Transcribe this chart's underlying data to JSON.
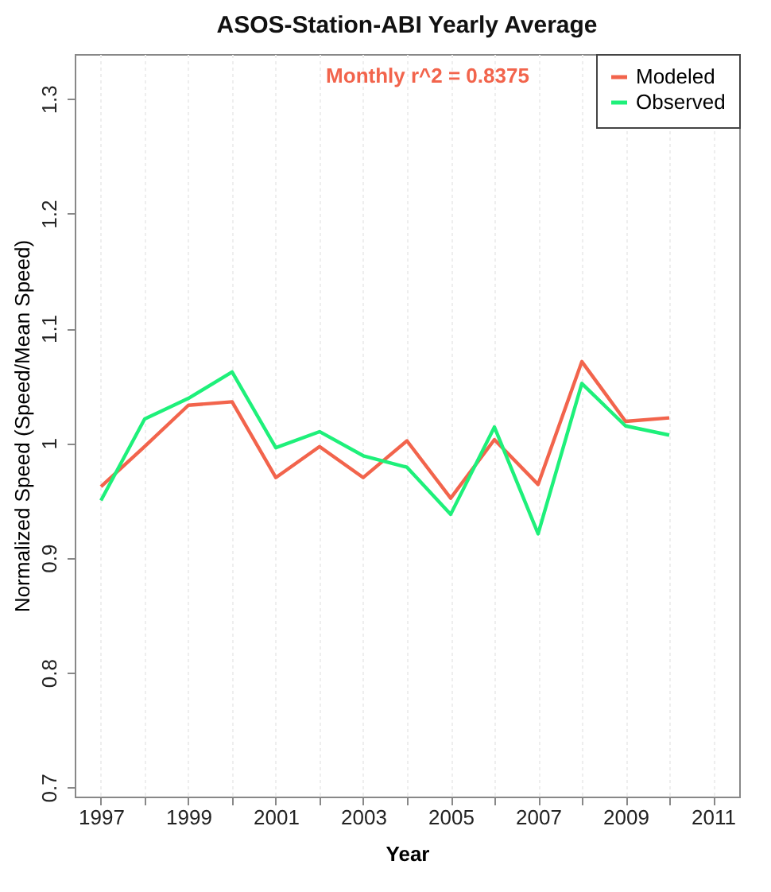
{
  "chart_data": {
    "type": "line",
    "title": "ASOS-Station-ABI Yearly Average",
    "xlabel": "Year",
    "ylabel": "Normalized Speed (Speed/Mean Speed)",
    "annotations": [
      "Monthly r^2 = 0.8375"
    ],
    "x": [
      1997,
      1998,
      1999,
      2000,
      2001,
      2002,
      2003,
      2004,
      2005,
      2006,
      2007,
      2008,
      2009,
      2010
    ],
    "series": [
      {
        "name": "Modeled",
        "color": "#f2644c",
        "values": [
          0.962,
          0.997,
          1.033,
          1.036,
          0.97,
          0.997,
          0.97,
          1.002,
          0.952,
          1.003,
          0.964,
          1.071,
          1.019,
          1.022
        ]
      },
      {
        "name": "Observed",
        "color": "#1ef07a",
        "values": [
          0.95,
          1.021,
          1.039,
          1.062,
          0.996,
          1.01,
          0.989,
          0.979,
          0.938,
          1.014,
          0.921,
          1.052,
          1.015,
          1.007
        ]
      }
    ],
    "xlim": [
      1996.4,
      2011.6
    ],
    "ylim": [
      0.692,
      1.339
    ],
    "xticks": [
      1997,
      {
        "value": 1998,
        "label": null
      },
      1999,
      {
        "value": 2000,
        "label": null
      },
      2001,
      {
        "value": 2002,
        "label": null
      },
      2003,
      {
        "value": 2004,
        "label": null
      },
      2005,
      {
        "value": 2006,
        "label": null
      },
      2007,
      {
        "value": 2008,
        "label": null
      },
      2009,
      {
        "value": 2010,
        "label": null
      },
      2011
    ],
    "yticks": [
      0.7,
      0.8,
      0.9,
      1.0,
      1.1,
      1.2,
      1.3
    ],
    "grid": "x",
    "legend": "top right",
    "marker": "none",
    "line_style": "solid"
  }
}
